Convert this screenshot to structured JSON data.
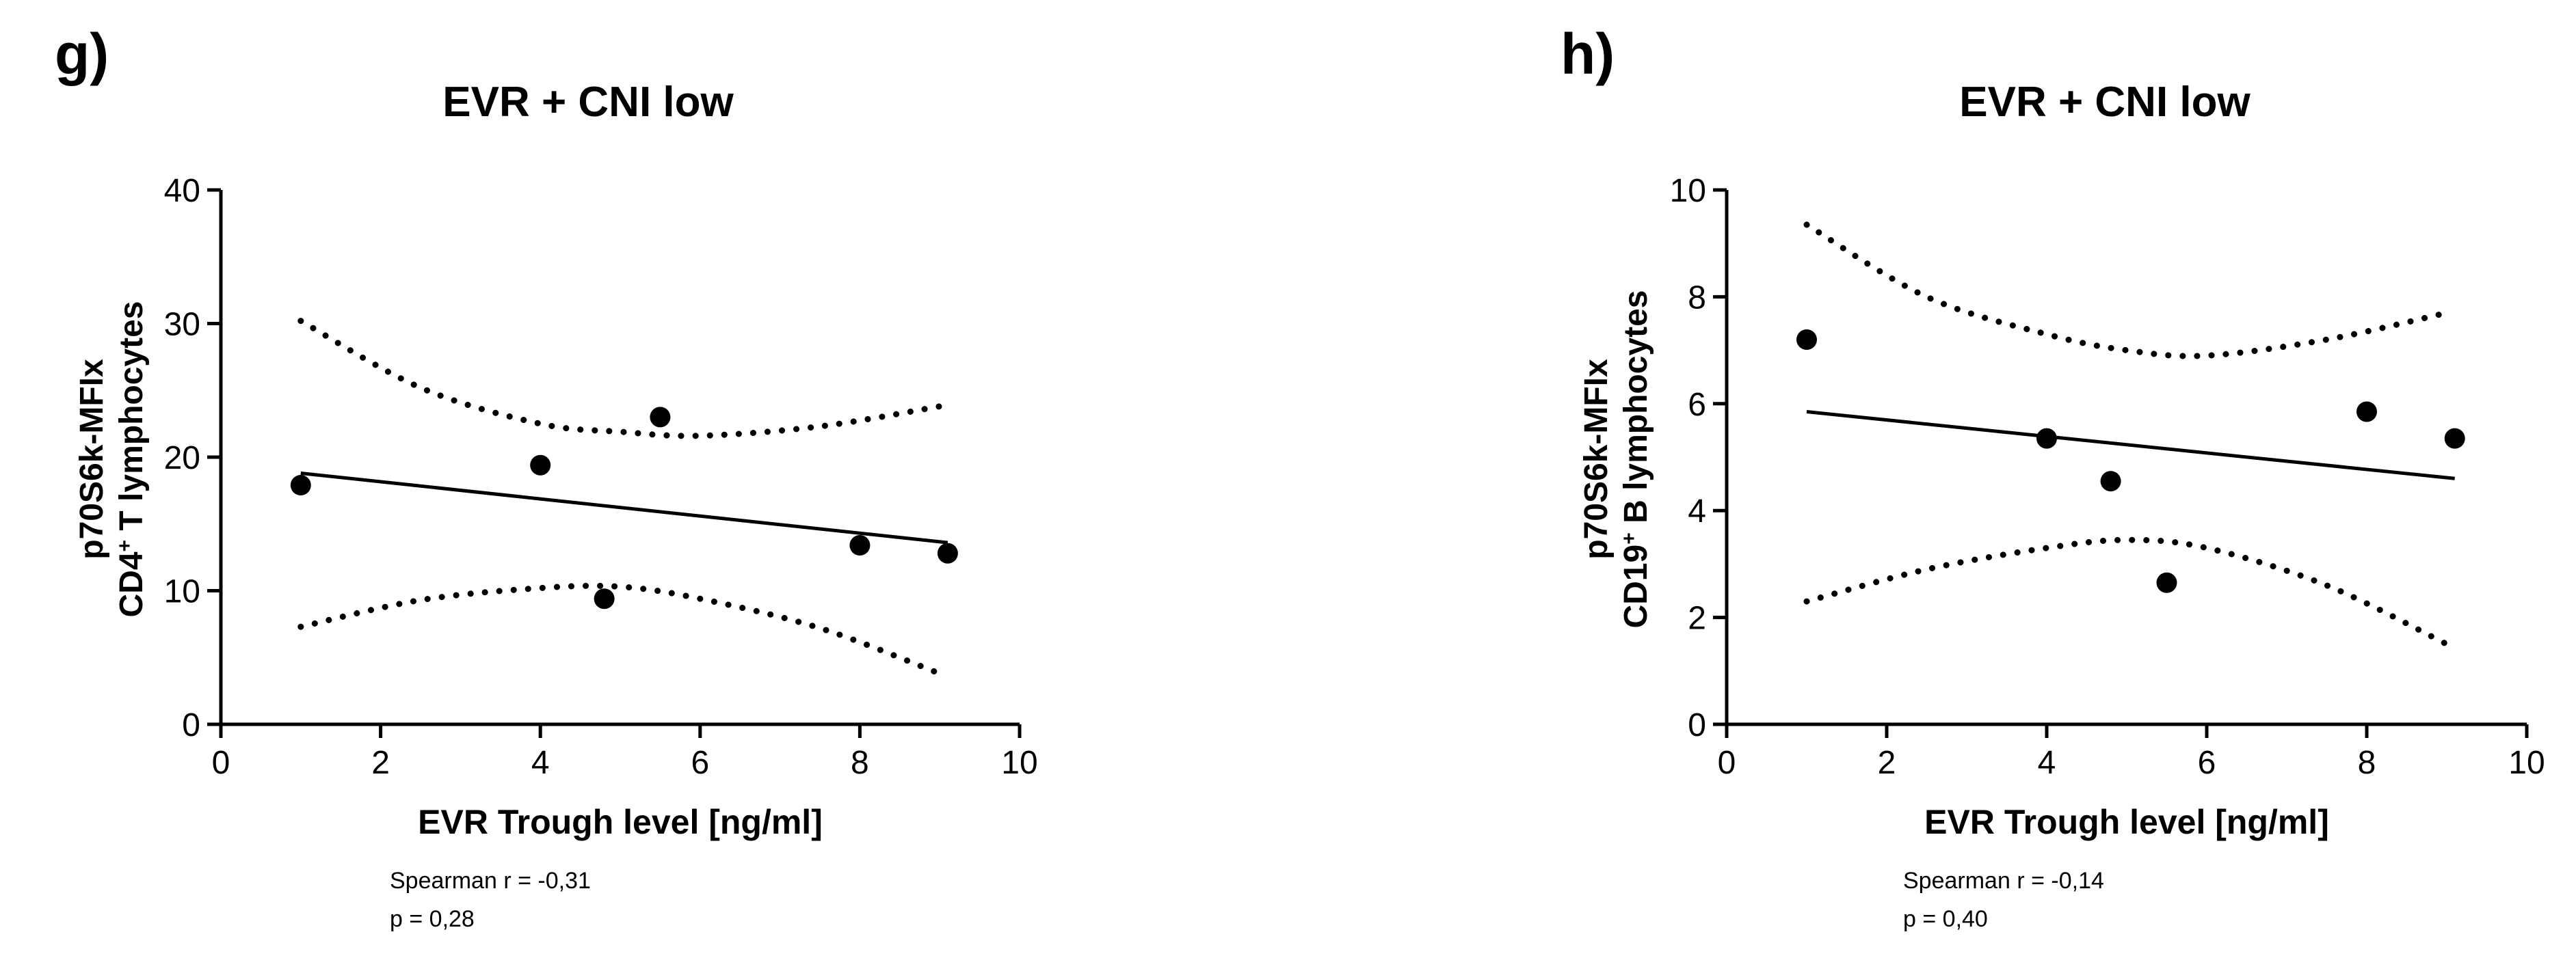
{
  "chart_data": [
    {
      "type": "scatter",
      "panel": "g)",
      "title": "EVR + CNI low",
      "xlabel": "EVR Trough level [ng/ml]",
      "ylabel_line1": "p70S6k-MFIx",
      "ylabel_line2_pre": "CD4",
      "ylabel_line2_sup": "+",
      "ylabel_line2_post": " T lymphocytes",
      "xlim": [
        0,
        10
      ],
      "ylim": [
        0,
        40
      ],
      "xticks": [
        0,
        2,
        4,
        6,
        8,
        10
      ],
      "yticks": [
        0,
        10,
        20,
        30,
        40
      ],
      "points": [
        {
          "x": 1.0,
          "y": 17.9
        },
        {
          "x": 4.0,
          "y": 19.4
        },
        {
          "x": 4.8,
          "y": 9.4
        },
        {
          "x": 5.5,
          "y": 23.0
        },
        {
          "x": 8.0,
          "y": 13.4
        },
        {
          "x": 9.1,
          "y": 12.8
        }
      ],
      "regression": {
        "x": [
          1.0,
          9.1
        ],
        "y": [
          18.8,
          13.6
        ]
      },
      "ci_upper": {
        "x": [
          1.0,
          2.5,
          4.0,
          5.0,
          6.0,
          7.5,
          9.0
        ],
        "y": [
          30.2,
          25.2,
          22.5,
          21.9,
          21.6,
          22.3,
          23.8
        ]
      },
      "ci_lower": {
        "x": [
          1.0,
          2.5,
          4.0,
          5.0,
          6.0,
          7.5,
          9.0
        ],
        "y": [
          7.3,
          9.3,
          10.2,
          10.3,
          9.4,
          7.2,
          3.8
        ]
      },
      "stat_line1": "Spearman r = -0,31",
      "stat_line2": "p = 0,28"
    },
    {
      "type": "scatter",
      "panel": "h)",
      "title": "EVR + CNI low",
      "xlabel": "EVR Trough level [ng/ml]",
      "ylabel_line1": "p70S6k-MFIx",
      "ylabel_line2_pre": "CD19",
      "ylabel_line2_sup": "+",
      "ylabel_line2_post": " B lymphocytes",
      "xlim": [
        0,
        10
      ],
      "ylim": [
        0,
        10
      ],
      "xticks": [
        0,
        2,
        4,
        6,
        8,
        10
      ],
      "yticks": [
        0,
        2,
        4,
        6,
        8,
        10
      ],
      "points": [
        {
          "x": 1.0,
          "y": 7.2
        },
        {
          "x": 4.0,
          "y": 5.35
        },
        {
          "x": 4.8,
          "y": 4.55
        },
        {
          "x": 5.5,
          "y": 2.65
        },
        {
          "x": 8.0,
          "y": 5.85
        },
        {
          "x": 9.1,
          "y": 5.35
        }
      ],
      "regression": {
        "x": [
          1.0,
          9.1
        ],
        "y": [
          5.85,
          4.6
        ]
      },
      "ci_upper": {
        "x": [
          1.0,
          2.5,
          4.0,
          5.0,
          6.0,
          7.5,
          9.0
        ],
        "y": [
          9.35,
          8.0,
          7.3,
          7.0,
          6.9,
          7.2,
          7.7
        ]
      },
      "ci_lower": {
        "x": [
          1.0,
          2.5,
          4.0,
          5.0,
          6.0,
          7.5,
          9.0
        ],
        "y": [
          2.3,
          2.9,
          3.3,
          3.45,
          3.3,
          2.6,
          1.5
        ]
      },
      "stat_line1": "Spearman r = -0,14",
      "stat_line2": "p = 0,40"
    }
  ]
}
